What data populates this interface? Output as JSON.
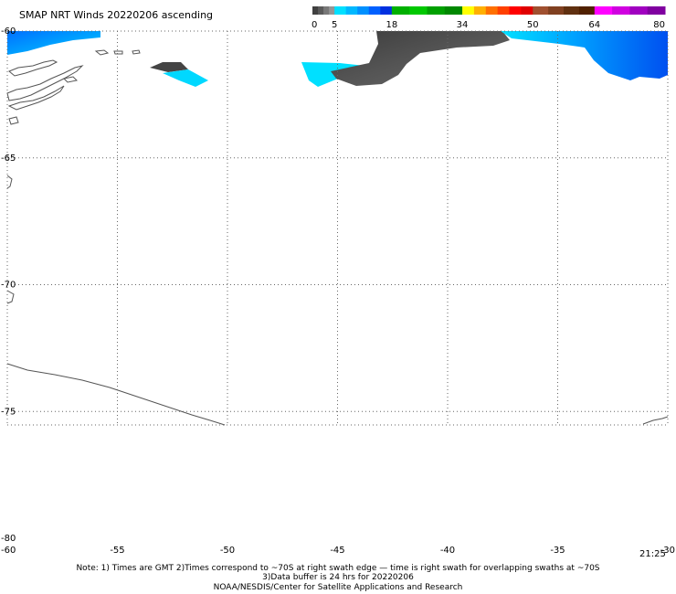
{
  "title": "SMAP NRT Winds 20220206 ascending",
  "colorbar": {
    "tick_labels": [
      "0",
      "5",
      "18",
      "34",
      "50",
      "64",
      "80"
    ],
    "segments": [
      {
        "from": 0,
        "to": 5,
        "colors": [
          "#404040",
          "#5a5a5a",
          "#787878",
          "#959595"
        ]
      },
      {
        "from": 5,
        "to": 18,
        "colors": [
          "#00e0ff",
          "#00b8ff",
          "#0090ff",
          "#0060ff",
          "#0030e0"
        ]
      },
      {
        "from": 18,
        "to": 34,
        "colors": [
          "#00b000",
          "#00c800",
          "#00a000",
          "#008800"
        ]
      },
      {
        "from": 34,
        "to": 50,
        "colors": [
          "#ffff00",
          "#ffb000",
          "#ff7000",
          "#ff4000",
          "#ff0000",
          "#e00000"
        ]
      },
      {
        "from": 50,
        "to": 64,
        "colors": [
          "#a05030",
          "#804020",
          "#603010",
          "#502000"
        ]
      },
      {
        "from": 64,
        "to": 80,
        "colors": [
          "#ff00ff",
          "#d000e0",
          "#a000c0",
          "#8000a0"
        ]
      }
    ]
  },
  "map": {
    "lon_range": [
      -60,
      -30
    ],
    "lat_range": [
      -60,
      -80
    ],
    "lon_ticks": [
      -60,
      -55,
      -50,
      -45,
      -40,
      -35,
      -30
    ],
    "lat_ticks": [
      -60,
      -65,
      -70,
      -75,
      -80
    ],
    "lon_tick_labels": [
      "-60",
      "-55",
      "-50",
      "-45",
      "-40",
      "-35",
      "-30"
    ],
    "lat_tick_labels": [
      "-60",
      "-65",
      "-70",
      "-75",
      "-80"
    ],
    "grid": "dotted",
    "wind_colors": {
      "calm": "#4a4a4a",
      "light": "#00e0ff",
      "moderate": "#0060ff"
    }
  },
  "time_label": "21:25",
  "notes": [
    "Note: 1) Times are GMT 2)Times correspond to ~70S at right swath edge — time is right swath for overlapping swaths at ~70S",
    "3)Data buffer is 24 hrs for 20220206",
    "NOAA/NESDIS/Center for Satellite Applications and Research"
  ]
}
